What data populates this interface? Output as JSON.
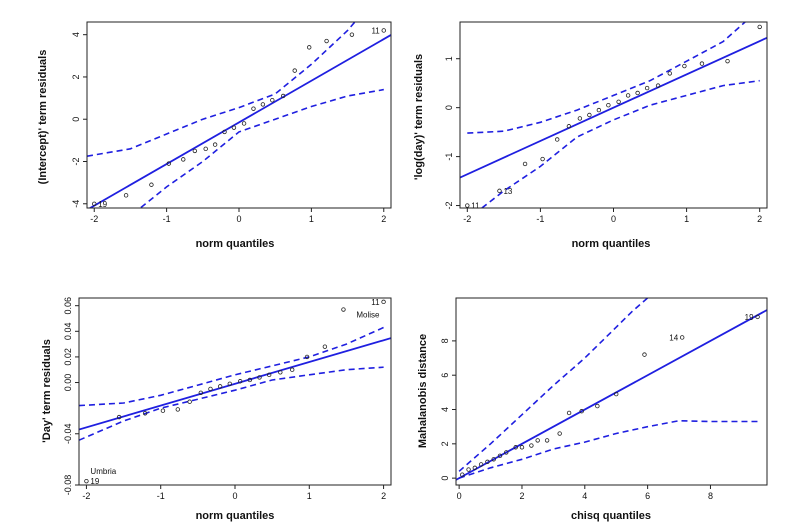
{
  "colors": {
    "fit_line": "#1f1fe0",
    "envelope": "#1f1fe0",
    "points": "#222222"
  },
  "chart_data": [
    {
      "type": "scatter",
      "xlabel": "norm quantiles",
      "ylabel": "(Intercept)' term residuals",
      "xlim": [
        -2.1,
        2.1
      ],
      "ylim": [
        -4.2,
        4.6
      ],
      "xticks": [
        "-2",
        "-1",
        "0",
        "1",
        "2"
      ],
      "xtick_values": [
        -2,
        -1,
        0,
        1,
        2
      ],
      "yticks": [
        "-4",
        "-2",
        "0",
        "2",
        "4"
      ],
      "ytick_values": [
        -4,
        -2,
        0,
        2,
        4
      ],
      "points": [
        [
          -2.0,
          -4.0
        ],
        [
          -1.56,
          -3.6
        ],
        [
          -1.21,
          -3.1
        ],
        [
          -0.97,
          -2.1
        ],
        [
          -0.77,
          -1.9
        ],
        [
          -0.61,
          -1.5
        ],
        [
          -0.46,
          -1.4
        ],
        [
          -0.33,
          -1.2
        ],
        [
          -0.2,
          -0.6
        ],
        [
          -0.07,
          -0.4
        ],
        [
          0.07,
          -0.2
        ],
        [
          0.2,
          0.5
        ],
        [
          0.33,
          0.7
        ],
        [
          0.46,
          0.9
        ],
        [
          0.61,
          1.1
        ],
        [
          0.77,
          2.3
        ],
        [
          0.97,
          3.4
        ],
        [
          1.21,
          3.7
        ],
        [
          1.56,
          4.0
        ],
        [
          2.0,
          4.2
        ]
      ],
      "fit": {
        "intercept": -0.15,
        "slope": 1.97
      },
      "envelope_upper": [
        [
          -2.1,
          -1.75
        ],
        [
          -1.5,
          -1.4
        ],
        [
          -1.0,
          -0.7
        ],
        [
          -0.5,
          0.0
        ],
        [
          0.0,
          0.55
        ],
        [
          0.5,
          1.2
        ],
        [
          1.0,
          2.6
        ],
        [
          1.5,
          4.2
        ],
        [
          1.6,
          4.6
        ]
      ],
      "envelope_lower": [
        [
          -1.6,
          -4.6
        ],
        [
          -1.4,
          -4.3
        ],
        [
          -1.0,
          -3.2
        ],
        [
          -0.5,
          -2.0
        ],
        [
          0.0,
          -0.6
        ],
        [
          0.5,
          0.0
        ],
        [
          1.0,
          0.6
        ],
        [
          1.5,
          1.1
        ],
        [
          2.0,
          1.4
        ]
      ],
      "point_labels": [
        {
          "text": "19",
          "x": -2.0,
          "y": -4.0,
          "side": "right"
        },
        {
          "text": "11",
          "x": 2.0,
          "y": 4.2,
          "side": "left"
        }
      ]
    },
    {
      "type": "scatter",
      "xlabel": "norm quantiles",
      "ylabel": "'log(day)' term residuals",
      "xlim": [
        -2.1,
        2.1
      ],
      "ylim": [
        -2.05,
        1.75
      ],
      "xticks": [
        "-2",
        "-1",
        "0",
        "1",
        "2"
      ],
      "xtick_values": [
        -2,
        -1,
        0,
        1,
        2
      ],
      "yticks": [
        "-2",
        "-1",
        "0",
        "1"
      ],
      "ytick_values": [
        -2,
        -1,
        0,
        1
      ],
      "points": [
        [
          -2.0,
          -2.0
        ],
        [
          -1.56,
          -1.7
        ],
        [
          -1.21,
          -1.15
        ],
        [
          -0.97,
          -1.05
        ],
        [
          -0.77,
          -0.65
        ],
        [
          -0.61,
          -0.38
        ],
        [
          -0.46,
          -0.22
        ],
        [
          -0.33,
          -0.15
        ],
        [
          -0.2,
          -0.05
        ],
        [
          -0.07,
          0.05
        ],
        [
          0.07,
          0.12
        ],
        [
          0.2,
          0.25
        ],
        [
          0.33,
          0.3
        ],
        [
          0.46,
          0.4
        ],
        [
          0.61,
          0.45
        ],
        [
          0.77,
          0.7
        ],
        [
          0.97,
          0.85
        ],
        [
          1.21,
          0.9
        ],
        [
          1.56,
          0.95
        ],
        [
          2.0,
          1.65
        ]
      ],
      "fit": {
        "intercept": 0.0,
        "slope": 0.68
      },
      "envelope_upper": [
        [
          -2.0,
          -0.52
        ],
        [
          -1.5,
          -0.48
        ],
        [
          -1.0,
          -0.3
        ],
        [
          -0.5,
          -0.05
        ],
        [
          0.0,
          0.25
        ],
        [
          0.5,
          0.55
        ],
        [
          1.0,
          0.95
        ],
        [
          1.5,
          1.35
        ],
        [
          1.8,
          1.75
        ]
      ],
      "envelope_lower": [
        [
          -1.8,
          -2.05
        ],
        [
          -1.5,
          -1.7
        ],
        [
          -1.0,
          -1.2
        ],
        [
          -0.5,
          -0.6
        ],
        [
          0.0,
          -0.25
        ],
        [
          0.5,
          0.05
        ],
        [
          1.0,
          0.25
        ],
        [
          1.5,
          0.45
        ],
        [
          2.0,
          0.55
        ]
      ],
      "point_labels": [
        {
          "text": "11",
          "x": -2.0,
          "y": -2.0,
          "side": "right"
        },
        {
          "text": "13",
          "x": -1.56,
          "y": -1.7,
          "side": "right"
        }
      ]
    },
    {
      "type": "scatter",
      "xlabel": "norm quantiles",
      "ylabel": "'Day' term residuals",
      "xlim": [
        -2.1,
        2.1
      ],
      "ylim": [
        -0.08,
        0.066
      ],
      "xticks": [
        "-2",
        "-1",
        "0",
        "1",
        "2"
      ],
      "xtick_values": [
        -2,
        -1,
        0,
        1,
        2
      ],
      "yticks": [
        "-0.08",
        "-0.04",
        "0.00",
        "0.02",
        "0.04",
        "0.06"
      ],
      "ytick_values": [
        -0.08,
        -0.04,
        0.0,
        0.02,
        0.04,
        0.06
      ],
      "points": [
        [
          -2.0,
          -0.077
        ],
        [
          -1.56,
          -0.027
        ],
        [
          -1.21,
          -0.024
        ],
        [
          -0.97,
          -0.022
        ],
        [
          -0.77,
          -0.021
        ],
        [
          -0.61,
          -0.015
        ],
        [
          -0.46,
          -0.008
        ],
        [
          -0.33,
          -0.005
        ],
        [
          -0.2,
          -0.003
        ],
        [
          -0.07,
          -0.001
        ],
        [
          0.07,
          0.001
        ],
        [
          0.2,
          0.002
        ],
        [
          0.33,
          0.004
        ],
        [
          0.46,
          0.006
        ],
        [
          0.61,
          0.008
        ],
        [
          0.77,
          0.01
        ],
        [
          0.97,
          0.02
        ],
        [
          1.21,
          0.028
        ],
        [
          1.46,
          0.057
        ],
        [
          2.0,
          0.063
        ]
      ],
      "fit": {
        "intercept": -0.001,
        "slope": 0.017
      },
      "envelope_upper": [
        [
          -2.1,
          -0.018
        ],
        [
          -1.5,
          -0.016
        ],
        [
          -1.0,
          -0.01
        ],
        [
          -0.5,
          -0.002
        ],
        [
          0.0,
          0.006
        ],
        [
          0.5,
          0.013
        ],
        [
          1.0,
          0.02
        ],
        [
          1.5,
          0.03
        ],
        [
          2.0,
          0.043
        ]
      ],
      "envelope_lower": [
        [
          -2.1,
          -0.045
        ],
        [
          -1.5,
          -0.03
        ],
        [
          -1.0,
          -0.02
        ],
        [
          -0.5,
          -0.013
        ],
        [
          0.0,
          -0.006
        ],
        [
          0.5,
          0.002
        ],
        [
          1.0,
          0.006
        ],
        [
          1.5,
          0.01
        ],
        [
          2.0,
          0.012
        ]
      ],
      "point_labels": [
        {
          "text": "Umbria",
          "x": -2.0,
          "y": -0.069,
          "side": "right"
        },
        {
          "text": "19",
          "x": -2.0,
          "y": -0.077,
          "side": "right"
        },
        {
          "text": "11",
          "x": 2.0,
          "y": 0.063,
          "side": "left"
        },
        {
          "text": "Molise",
          "x": 1.58,
          "y": 0.053,
          "side": "right"
        }
      ]
    },
    {
      "type": "scatter",
      "xlabel": "chisq quantiles",
      "ylabel": "Mahalanobis distance",
      "xlim": [
        -0.1,
        9.8
      ],
      "ylim": [
        -0.4,
        10.5
      ],
      "xticks": [
        "0",
        "2",
        "4",
        "6",
        "8"
      ],
      "xtick_values": [
        0,
        2,
        4,
        6,
        8
      ],
      "yticks": [
        "0",
        "2",
        "4",
        "6",
        "8"
      ],
      "ytick_values": [
        0,
        2,
        4,
        6,
        8
      ],
      "points": [
        [
          0.1,
          0.2
        ],
        [
          0.3,
          0.5
        ],
        [
          0.5,
          0.6
        ],
        [
          0.7,
          0.8
        ],
        [
          0.9,
          0.95
        ],
        [
          1.1,
          1.1
        ],
        [
          1.3,
          1.3
        ],
        [
          1.5,
          1.5
        ],
        [
          1.8,
          1.8
        ],
        [
          2.0,
          1.8
        ],
        [
          2.3,
          1.9
        ],
        [
          2.5,
          2.2
        ],
        [
          2.8,
          2.2
        ],
        [
          3.2,
          2.6
        ],
        [
          3.5,
          3.8
        ],
        [
          3.9,
          3.9
        ],
        [
          4.4,
          4.2
        ],
        [
          5.0,
          4.9
        ],
        [
          5.9,
          7.2
        ],
        [
          7.1,
          8.2
        ],
        [
          9.5,
          9.4
        ]
      ],
      "fit": {
        "intercept": 0.0,
        "slope": 1.0
      },
      "envelope_upper": [
        [
          0.0,
          0.4
        ],
        [
          1.0,
          2.0
        ],
        [
          2.0,
          3.7
        ],
        [
          3.0,
          5.4
        ],
        [
          4.0,
          7.0
        ],
        [
          5.0,
          8.8
        ],
        [
          5.5,
          9.7
        ],
        [
          6.0,
          10.5
        ]
      ],
      "envelope_lower": [
        [
          0.0,
          0.0
        ],
        [
          1.0,
          0.6
        ],
        [
          2.0,
          1.1
        ],
        [
          3.0,
          1.7
        ],
        [
          4.0,
          2.1
        ],
        [
          5.0,
          2.6
        ],
        [
          6.0,
          3.0
        ],
        [
          7.0,
          3.35
        ],
        [
          8.0,
          3.3
        ],
        [
          9.5,
          3.3
        ]
      ],
      "point_labels": [
        {
          "text": "14",
          "x": 7.1,
          "y": 8.2,
          "side": "left"
        },
        {
          "text": "19",
          "x": 9.5,
          "y": 9.4,
          "side": "left"
        }
      ]
    }
  ]
}
